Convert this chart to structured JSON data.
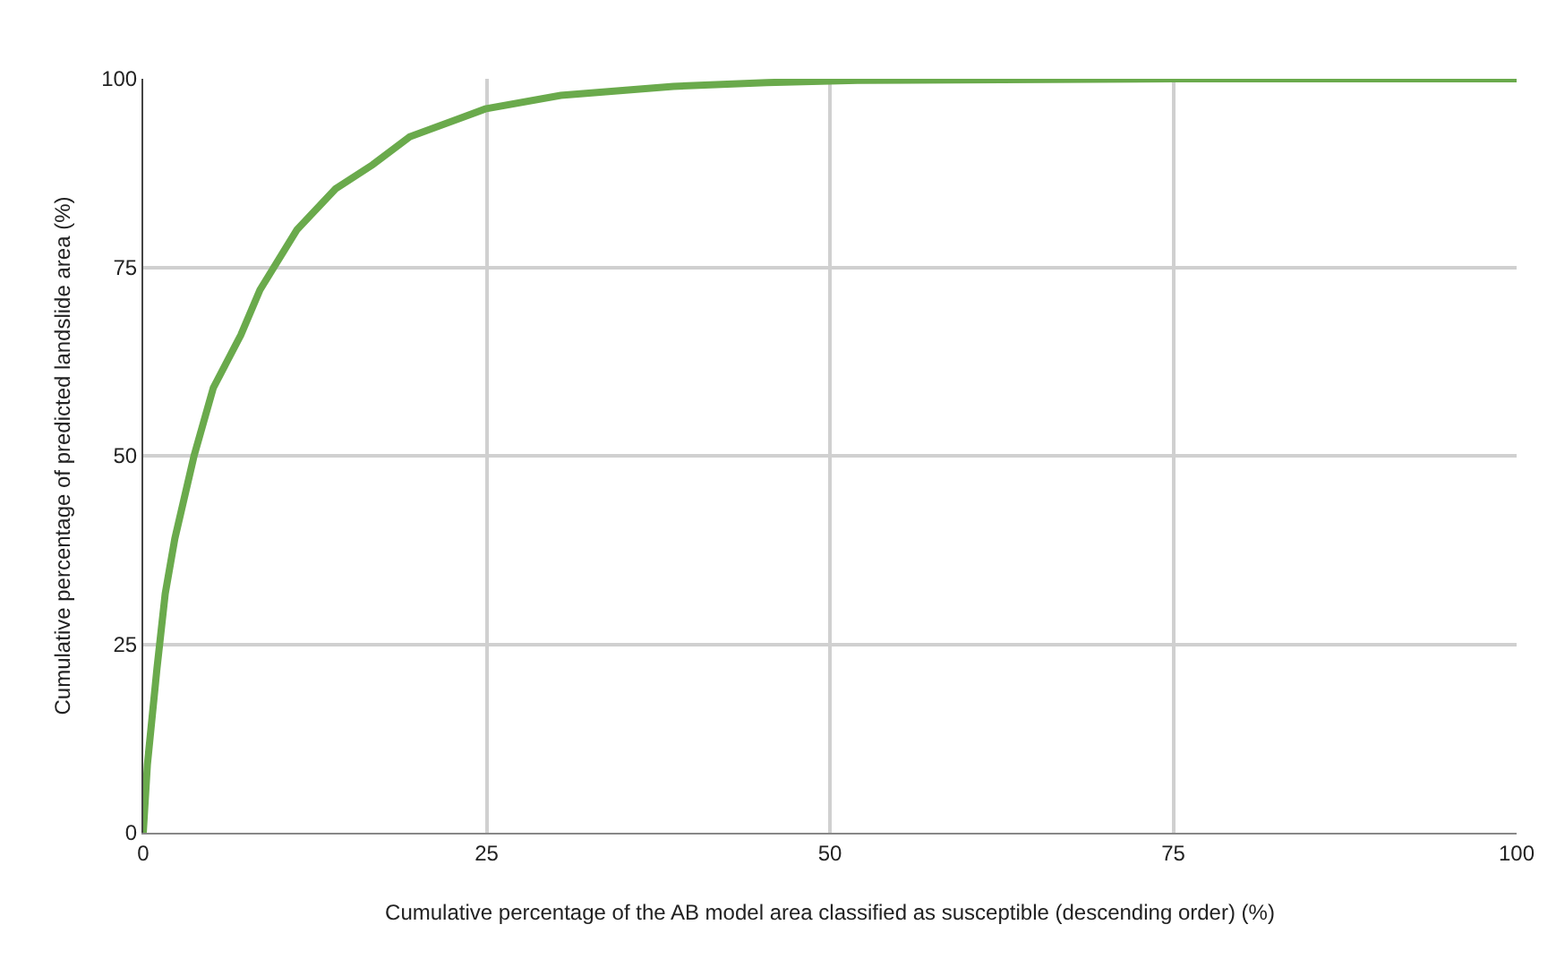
{
  "chart_data": {
    "type": "line",
    "xlabel": "Cumulative percentage of the AB model area classified as susceptible (descending order) (%)",
    "ylabel": "Cumulative percentage of predicted landslide area (%)",
    "x": [
      0,
      0.3,
      1.0,
      1.6,
      2.3,
      3.7,
      5.1,
      7.1,
      8.5,
      11.2,
      14,
      16.7,
      19.4,
      24.9,
      30.4,
      38.6,
      45.4,
      52,
      75,
      100
    ],
    "series": [
      {
        "color": "#6aaa4c",
        "values": [
          0,
          9,
          21.8,
          31.7,
          39,
          50,
          59,
          66,
          72,
          80,
          85.4,
          88.6,
          92.3,
          96,
          97.8,
          99,
          99.5,
          99.8,
          100,
          100
        ]
      }
    ],
    "xlim": [
      0,
      100
    ],
    "ylim": [
      0,
      100
    ],
    "xticks": [
      0,
      25,
      50,
      75,
      100
    ],
    "yticks": [
      0,
      25,
      50,
      75,
      100
    ],
    "grid": true,
    "marker": "none",
    "line_style": "solid"
  }
}
